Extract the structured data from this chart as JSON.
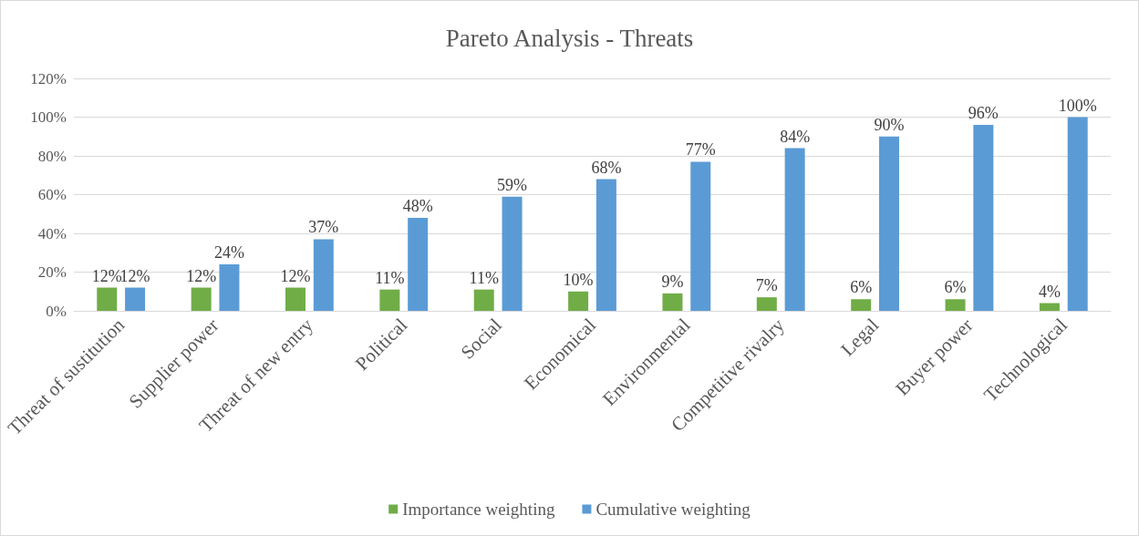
{
  "chart_data": {
    "type": "bar",
    "title": "Pareto Analysis - Threats",
    "categories": [
      "Threat of sustitution",
      "Supplier power",
      "Threat of new entry",
      "Political",
      "Social",
      "Economical",
      "Environmental",
      "Competitive rivalry",
      "Legal",
      "Buyer power",
      "Technological"
    ],
    "series": [
      {
        "name": "Importance weighting",
        "color": "#70ad47",
        "values": [
          12,
          12,
          12,
          11,
          11,
          10,
          9,
          7,
          6,
          6,
          4
        ],
        "value_labels": [
          "12%",
          "12%",
          "12%",
          "11%",
          "11%",
          "10%",
          "9%",
          "7%",
          "6%",
          "6%",
          "4%"
        ]
      },
      {
        "name": "Cumulative weighting",
        "color": "#5b9bd5",
        "values": [
          12,
          24,
          37,
          48,
          59,
          68,
          77,
          84,
          90,
          96,
          100
        ],
        "value_labels": [
          "12%",
          "24%",
          "37%",
          "48%",
          "59%",
          "68%",
          "77%",
          "84%",
          "90%",
          "96%",
          "100%"
        ]
      }
    ],
    "ylim": [
      0,
      120
    ],
    "yticks": [
      {
        "value": 0,
        "label": "0%"
      },
      {
        "value": 20,
        "label": "20%"
      },
      {
        "value": 40,
        "label": "40%"
      },
      {
        "value": 60,
        "label": "60%"
      },
      {
        "value": 80,
        "label": "80%"
      },
      {
        "value": 100,
        "label": "100%"
      },
      {
        "value": 120,
        "label": "120%"
      }
    ],
    "grid": "y",
    "legend": "bottom"
  }
}
